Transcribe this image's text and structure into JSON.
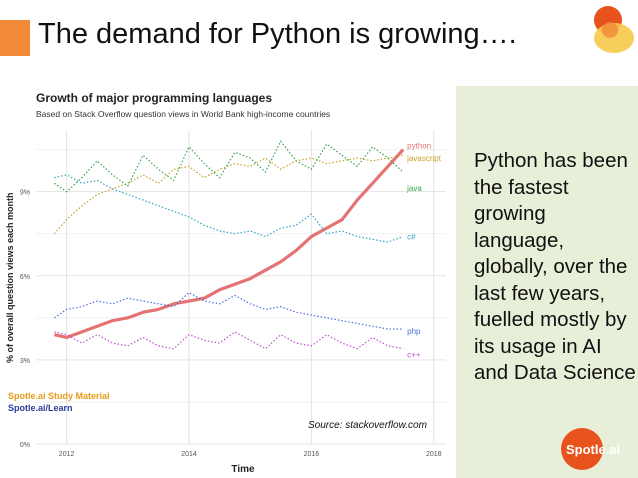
{
  "slide": {
    "title": "The demand for Python is growing….",
    "side_text": "Python has been the fastest growing language, globally, over the last few years, fuelled mostly by its usage in AI and Data Science",
    "watermark_line1": "Spotle.ai Study Material",
    "watermark_line2": "Spotle.ai/Learn",
    "source": "Source: stackoverflow.com",
    "logo_text": "Spotle.ai",
    "colors": {
      "accent": "#f28a3a",
      "sidebar": "#e8efd9",
      "logo": "#e8531d"
    }
  },
  "chart_data": {
    "type": "line",
    "title": "Growth of major programming languages",
    "subtitle": "Based on Stack Overflow question views in World Bank high-income countries",
    "xlabel": "Time",
    "ylabel": "% of overall question views each month",
    "x_ticks": [
      2012,
      2014,
      2016,
      2018
    ],
    "y_ticks": [
      "0%",
      "3%",
      "6%",
      "9%"
    ],
    "y_tick_values": [
      0,
      3,
      6,
      9
    ],
    "xlim": [
      2011.5,
      2018.2
    ],
    "ylim": [
      0,
      11.2
    ],
    "grid": true,
    "series": [
      {
        "name": "python",
        "color": "#e57373",
        "style": "solid",
        "x": [
          2011.8,
          2012.0,
          2012.25,
          2012.5,
          2012.75,
          2013.0,
          2013.25,
          2013.5,
          2013.75,
          2014.0,
          2014.25,
          2014.5,
          2014.75,
          2015.0,
          2015.25,
          2015.5,
          2015.75,
          2016.0,
          2016.25,
          2016.5,
          2016.75,
          2017.0,
          2017.25,
          2017.5
        ],
        "y": [
          3.9,
          3.8,
          4.0,
          4.2,
          4.4,
          4.5,
          4.7,
          4.8,
          5.0,
          5.1,
          5.2,
          5.5,
          5.7,
          5.9,
          6.2,
          6.5,
          6.9,
          7.4,
          7.7,
          8.0,
          8.7,
          9.3,
          9.9,
          10.5
        ]
      },
      {
        "name": "javascript",
        "color": "#c9a227",
        "style": "dotted",
        "x": [
          2011.8,
          2012.0,
          2012.25,
          2012.5,
          2012.75,
          2013.0,
          2013.25,
          2013.5,
          2013.75,
          2014.0,
          2014.25,
          2014.5,
          2014.75,
          2015.0,
          2015.25,
          2015.5,
          2015.75,
          2016.0,
          2016.25,
          2016.5,
          2016.75,
          2017.0,
          2017.25,
          2017.5
        ],
        "y": [
          7.5,
          8.0,
          8.5,
          8.9,
          9.1,
          9.3,
          9.6,
          9.3,
          9.8,
          9.9,
          9.5,
          9.8,
          10.0,
          9.9,
          10.2,
          9.8,
          10.1,
          10.2,
          10.0,
          10.1,
          10.2,
          10.1,
          10.2,
          10.3
        ]
      },
      {
        "name": "java",
        "color": "#3aa34a",
        "style": "dotted",
        "x": [
          2011.8,
          2012.0,
          2012.25,
          2012.5,
          2012.75,
          2013.0,
          2013.25,
          2013.5,
          2013.75,
          2014.0,
          2014.25,
          2014.5,
          2014.75,
          2015.0,
          2015.25,
          2015.5,
          2015.75,
          2016.0,
          2016.25,
          2016.5,
          2016.75,
          2017.0,
          2017.25,
          2017.5
        ],
        "y": [
          9.3,
          9.0,
          9.5,
          10.1,
          9.6,
          9.2,
          10.3,
          9.8,
          9.4,
          10.6,
          10.0,
          9.5,
          10.4,
          10.2,
          9.7,
          10.8,
          10.1,
          9.8,
          10.7,
          10.3,
          9.9,
          10.6,
          10.2,
          9.7
        ]
      },
      {
        "name": "c#",
        "color": "#37a3c4",
        "style": "dotted",
        "x": [
          2011.8,
          2012.0,
          2012.25,
          2012.5,
          2012.75,
          2013.0,
          2013.25,
          2013.5,
          2013.75,
          2014.0,
          2014.25,
          2014.5,
          2014.75,
          2015.0,
          2015.25,
          2015.5,
          2015.75,
          2016.0,
          2016.25,
          2016.5,
          2016.75,
          2017.0,
          2017.25,
          2017.5
        ],
        "y": [
          9.5,
          9.6,
          9.3,
          9.4,
          9.1,
          8.9,
          8.7,
          8.5,
          8.3,
          8.1,
          7.8,
          7.6,
          7.5,
          7.6,
          7.4,
          7.7,
          7.8,
          8.2,
          7.5,
          7.6,
          7.4,
          7.3,
          7.2,
          7.4
        ]
      },
      {
        "name": "php",
        "color": "#4a6fd6",
        "style": "dotted",
        "x": [
          2011.8,
          2012.0,
          2012.25,
          2012.5,
          2012.75,
          2013.0,
          2013.25,
          2013.5,
          2013.75,
          2014.0,
          2014.25,
          2014.5,
          2014.75,
          2015.0,
          2015.25,
          2015.5,
          2015.75,
          2016.0,
          2016.25,
          2016.5,
          2016.75,
          2017.0,
          2017.25,
          2017.5
        ],
        "y": [
          4.5,
          4.8,
          4.9,
          5.1,
          5.0,
          5.2,
          5.1,
          5.0,
          4.9,
          5.4,
          5.1,
          5.0,
          5.3,
          5.0,
          4.8,
          4.9,
          4.7,
          4.6,
          4.5,
          4.4,
          4.3,
          4.2,
          4.1,
          4.1
        ]
      },
      {
        "name": "c++",
        "color": "#c24fd0",
        "style": "dotted",
        "x": [
          2011.8,
          2012.0,
          2012.25,
          2012.5,
          2012.75,
          2013.0,
          2013.25,
          2013.5,
          2013.75,
          2014.0,
          2014.25,
          2014.5,
          2014.75,
          2015.0,
          2015.25,
          2015.5,
          2015.75,
          2016.0,
          2016.25,
          2016.5,
          2016.75,
          2017.0,
          2017.25,
          2017.5
        ],
        "y": [
          4.0,
          3.9,
          3.6,
          3.9,
          3.6,
          3.5,
          3.8,
          3.5,
          3.4,
          3.9,
          3.7,
          3.6,
          4.0,
          3.7,
          3.4,
          3.9,
          3.6,
          3.5,
          3.9,
          3.6,
          3.4,
          3.8,
          3.5,
          3.4
        ]
      }
    ]
  }
}
